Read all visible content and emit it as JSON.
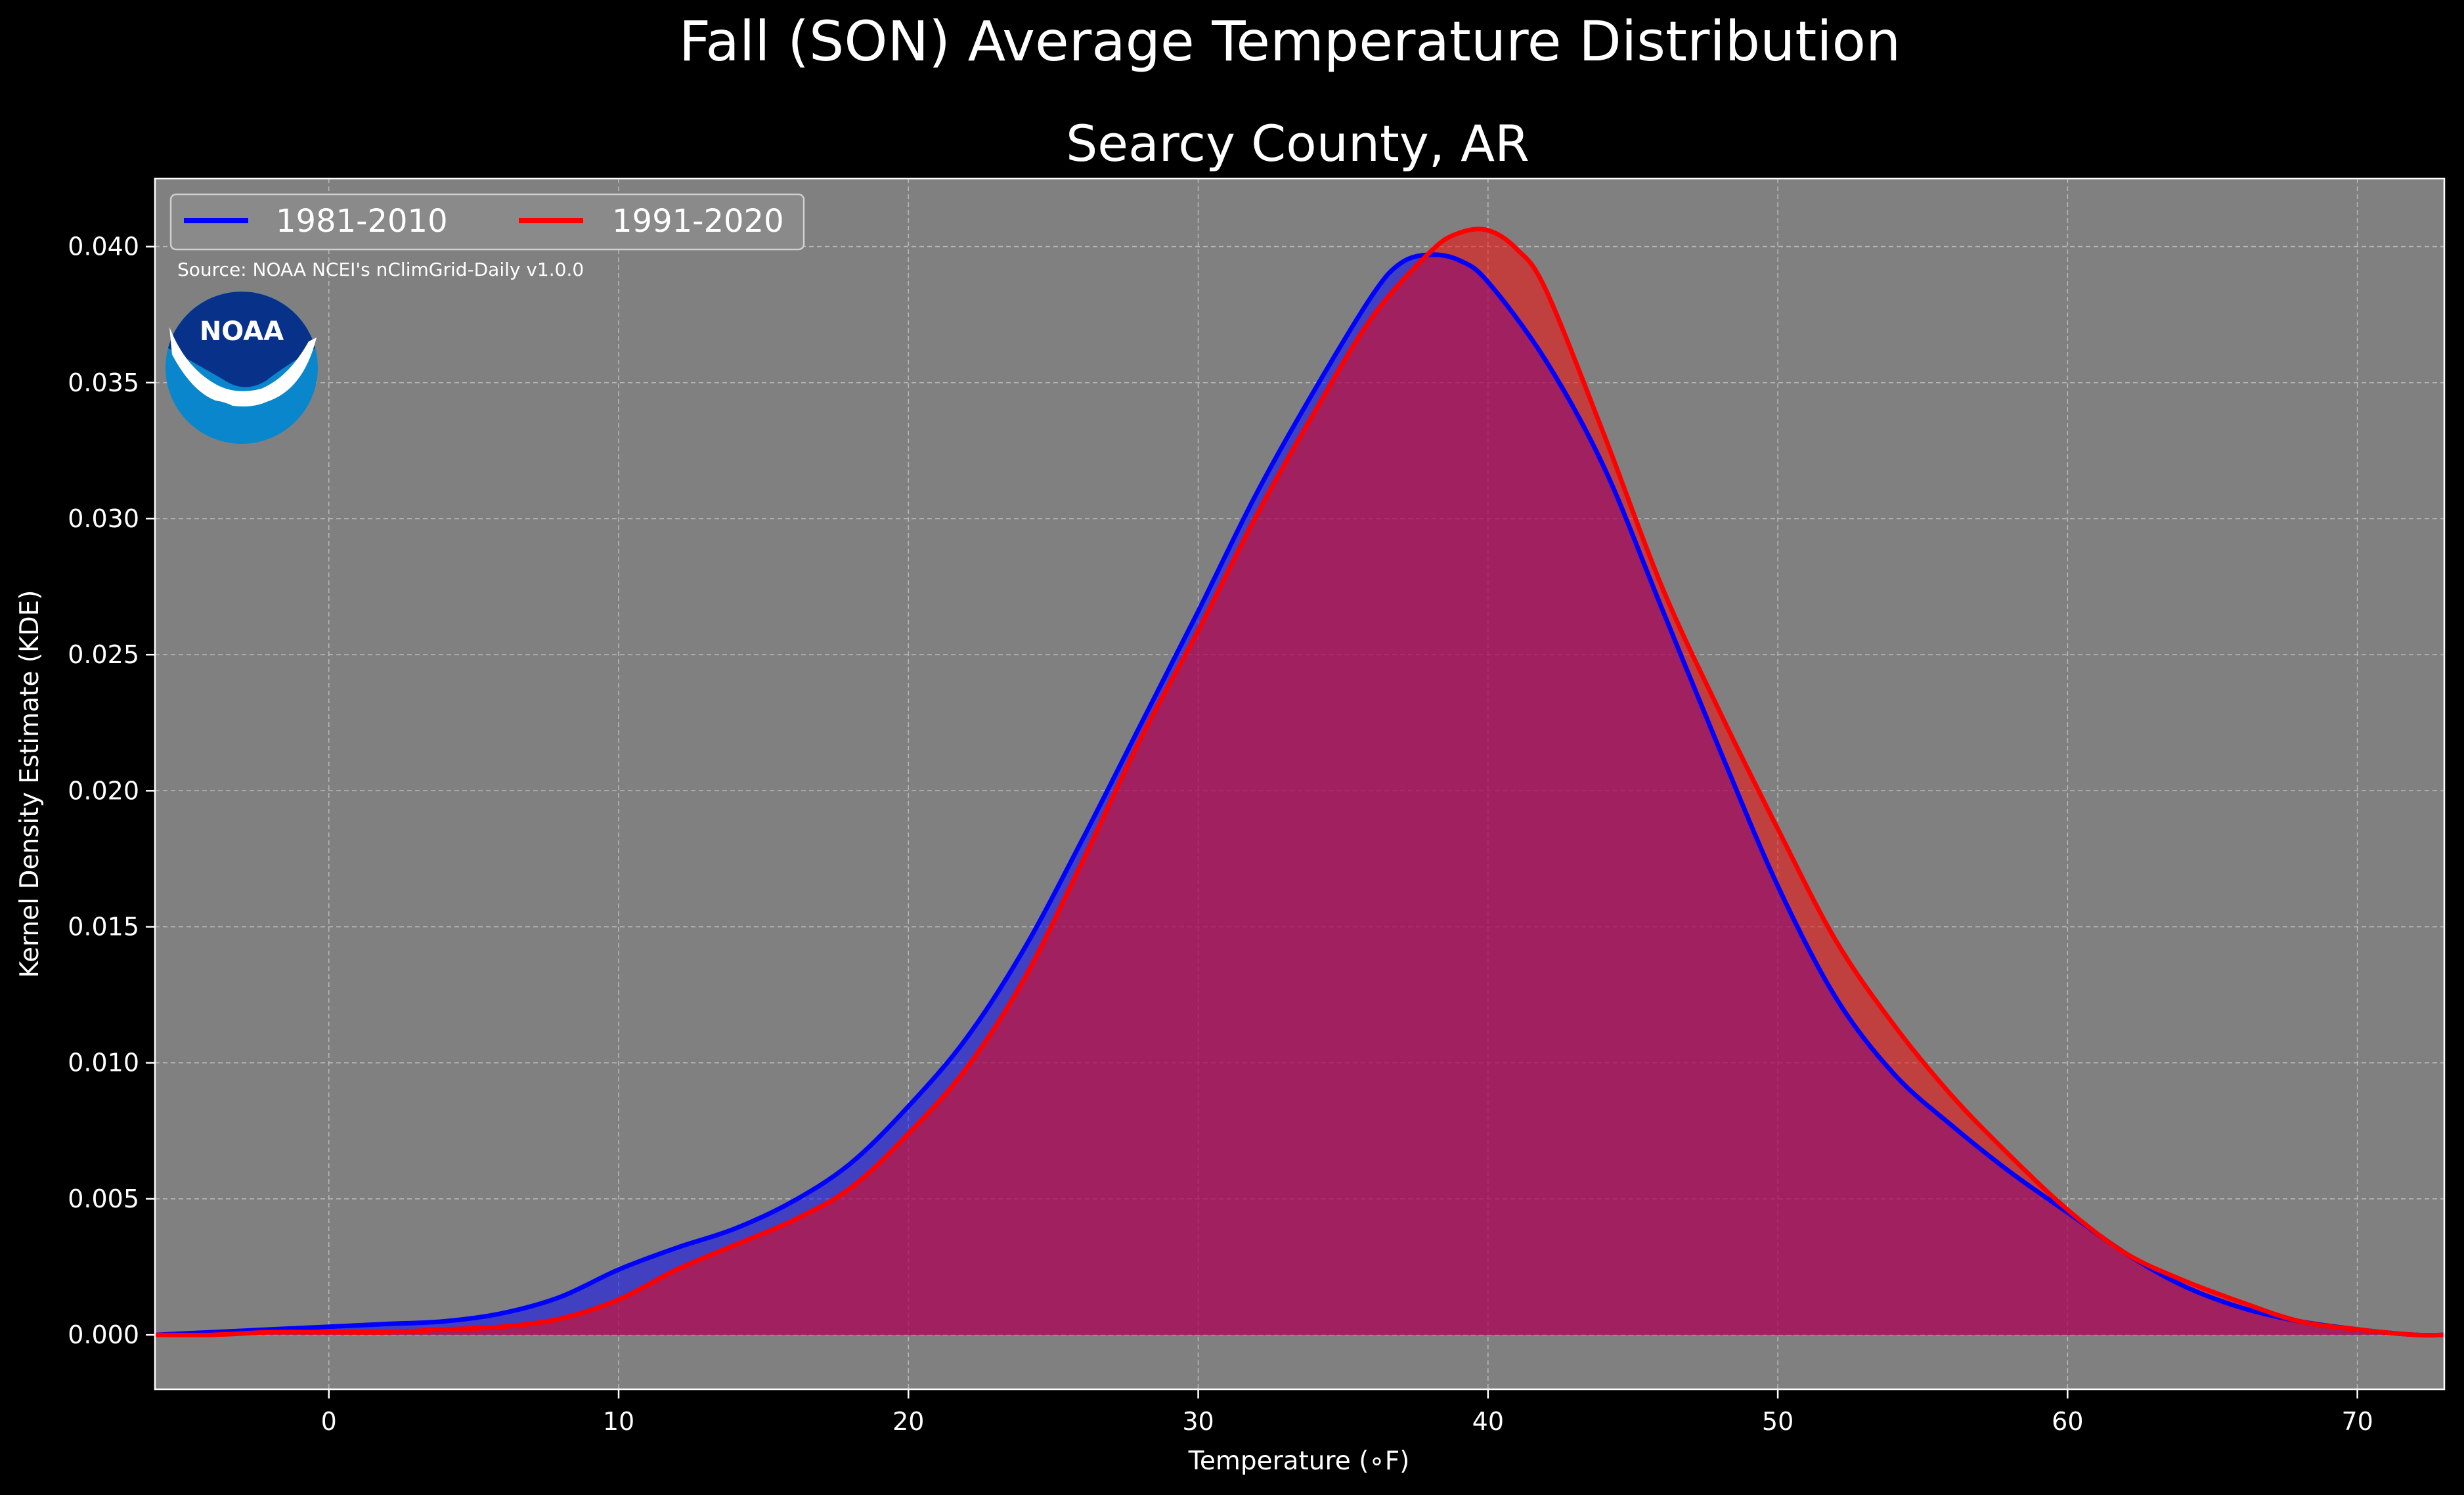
{
  "figure": {
    "suptitle": "Fall (SON) Average Temperature Distribution",
    "source": "Source: NOAA NCEI's nClimGrid-Daily v1.0.0",
    "logo_text": "NOAA"
  },
  "colors": {
    "background": "#000000",
    "plot_background": "#808080",
    "series_1981_2010": "#0000ff",
    "series_1991_2020": "#ff0000",
    "text": "#ffffff"
  },
  "chart_data": {
    "type": "area",
    "title": "Searcy County, AR",
    "xlabel": "Temperature ($^\\circ$F)",
    "xlabel_display": "Temperature (∘F)",
    "ylabel": "Kernel Density Estimate (KDE)",
    "xlim": [
      -6,
      73
    ],
    "ylim": [
      -0.002,
      0.0425
    ],
    "xticks": [
      0,
      10,
      20,
      30,
      40,
      50,
      60,
      70
    ],
    "xtick_labels": [
      "0",
      "10",
      "20",
      "30",
      "40",
      "50",
      "60",
      "70"
    ],
    "yticks": [
      0.0,
      0.005,
      0.01,
      0.015,
      0.02,
      0.025,
      0.03,
      0.035,
      0.04
    ],
    "ytick_labels": [
      "0.000",
      "0.005",
      "0.010",
      "0.015",
      "0.020",
      "0.025",
      "0.030",
      "0.035",
      "0.040"
    ],
    "grid": true,
    "legend": {
      "placement": "top-left",
      "columns": 2
    },
    "series": [
      {
        "name": "1981-2010",
        "color": "#0000ff",
        "x": [
          -6,
          -4,
          -2,
          0,
          2,
          4,
          6,
          8,
          10,
          12,
          14,
          16,
          18,
          20,
          22,
          24,
          26,
          28,
          30,
          32,
          34,
          36,
          37,
          38,
          39,
          40,
          42,
          44,
          46,
          48,
          50,
          52,
          54,
          56,
          58,
          60,
          62,
          64,
          66,
          68,
          70,
          72,
          73
        ],
        "y": [
          0.0,
          0.0001,
          0.0002,
          0.0003,
          0.0004,
          0.0005,
          0.0008,
          0.0014,
          0.0024,
          0.0032,
          0.0039,
          0.0049,
          0.0063,
          0.0084,
          0.0109,
          0.0142,
          0.0182,
          0.0224,
          0.0266,
          0.0309,
          0.0347,
          0.0382,
          0.0394,
          0.0397,
          0.0395,
          0.0387,
          0.0358,
          0.0319,
          0.0267,
          0.0215,
          0.0165,
          0.0124,
          0.0096,
          0.0077,
          0.006,
          0.0045,
          0.003,
          0.0018,
          0.001,
          0.0005,
          0.0002,
          0.0,
          0.0
        ]
      },
      {
        "name": "1991-2020",
        "color": "#ff0000",
        "x": [
          -6,
          -4,
          -2,
          0,
          2,
          4,
          6,
          8,
          10,
          12,
          14,
          16,
          18,
          20,
          22,
          24,
          26,
          28,
          30,
          32,
          34,
          36,
          38,
          39,
          40,
          41,
          42,
          44,
          46,
          48,
          50,
          52,
          54,
          56,
          58,
          60,
          62,
          64,
          66,
          68,
          70,
          72,
          73
        ],
        "y": [
          0.0,
          0.0,
          0.0001,
          0.0001,
          0.0001,
          0.0002,
          0.0003,
          0.0006,
          0.0013,
          0.0024,
          0.0033,
          0.0042,
          0.0054,
          0.0074,
          0.0098,
          0.0131,
          0.0174,
          0.0219,
          0.0259,
          0.0301,
          0.0339,
          0.0374,
          0.0398,
          0.0405,
          0.0406,
          0.0399,
          0.0384,
          0.0331,
          0.0275,
          0.0229,
          0.0186,
          0.0145,
          0.0114,
          0.0088,
          0.0066,
          0.0046,
          0.003,
          0.002,
          0.0012,
          0.0005,
          0.0002,
          0.0,
          0.0
        ]
      }
    ]
  }
}
